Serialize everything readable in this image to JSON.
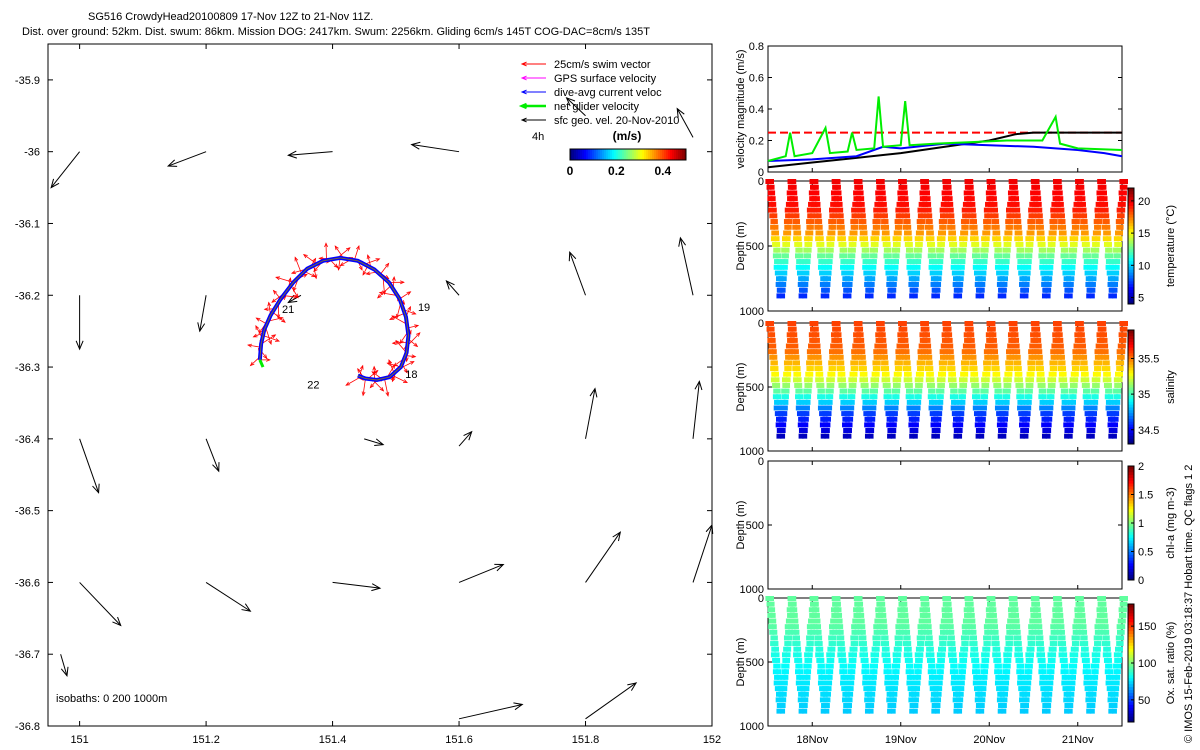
{
  "title": {
    "line1": "SG516 CrowdyHead20100809 17-Nov 12Z to 21-Nov 11Z.",
    "line2": "Dist. over ground: 52km. Dist. swum: 86km. Mission DOG: 2417km. Swum: 2256km. Gliding 6cm/s 145T COG-DAC=8cm/s 135T"
  },
  "credit": "© IMOS 15-Feb-2019 03:18:37 Hobart time. QC flags 1  2",
  "colors": {
    "swim": "#ff0000",
    "gps": "#ff00ff",
    "dac": "#0000ff",
    "net": "#00ee00",
    "geo": "#000000"
  },
  "chart_data": [
    {
      "id": "map",
      "type": "scatter",
      "xlim": [
        150.95,
        152.0
      ],
      "ylim": [
        -36.8,
        -35.85
      ],
      "xticks": [
        151,
        151.2,
        151.4,
        151.6,
        151.8,
        152
      ],
      "yticks": [
        -35.9,
        -36,
        -36.1,
        -36.2,
        -36.3,
        -36.4,
        -36.5,
        -36.6,
        -36.7,
        -36.8
      ],
      "legend": {
        "position": "top-right",
        "entries": [
          {
            "label": "25cm/s swim vector",
            "color": "#ff0000"
          },
          {
            "label": "GPS surface velocity",
            "color": "#ff00ff"
          },
          {
            "label": "dive-avg current veloc",
            "color": "#0000ff"
          },
          {
            "label": "net glider velocity",
            "color": "#00ee00"
          },
          {
            "label": "sfc geo. vel. 20-Nov-2010",
            "color": "#000000"
          }
        ]
      },
      "colorbar": {
        "label": "(m/s)",
        "ticks": [
          0,
          0.2,
          0.4
        ],
        "range": [
          0,
          0.5
        ]
      },
      "scale_label": "4h",
      "isobaths_label": "isobaths: 0   200   1000m",
      "track_labels": [
        {
          "text": "21",
          "x": 151.32,
          "y": -36.225
        },
        {
          "text": "19",
          "x": 151.535,
          "y": -36.222
        },
        {
          "text": "18",
          "x": 151.515,
          "y": -36.315
        },
        {
          "text": "22",
          "x": 151.36,
          "y": -36.33
        }
      ],
      "track": [
        [
          151.285,
          -36.29
        ],
        [
          151.287,
          -36.268
        ],
        [
          151.292,
          -36.248
        ],
        [
          151.302,
          -36.228
        ],
        [
          151.318,
          -36.205
        ],
        [
          151.338,
          -36.182
        ],
        [
          151.36,
          -36.163
        ],
        [
          151.385,
          -36.152
        ],
        [
          151.412,
          -36.148
        ],
        [
          151.44,
          -36.152
        ],
        [
          151.466,
          -36.164
        ],
        [
          151.489,
          -36.182
        ],
        [
          151.506,
          -36.205
        ],
        [
          151.516,
          -36.23
        ],
        [
          151.52,
          -36.256
        ],
        [
          151.517,
          -36.28
        ],
        [
          151.508,
          -36.3
        ],
        [
          151.49,
          -36.314
        ],
        [
          151.47,
          -36.318
        ],
        [
          151.452,
          -36.316
        ],
        [
          151.44,
          -36.312
        ]
      ],
      "geo_vectors": [
        [
          151.0,
          -36.0,
          -0.045,
          -0.05
        ],
        [
          151.2,
          -36.0,
          -0.06,
          -0.02
        ],
        [
          151.4,
          -36.0,
          -0.07,
          -0.005
        ],
        [
          151.6,
          -36.0,
          -0.075,
          0.01
        ],
        [
          151.8,
          -35.95,
          -0.03,
          0.025
        ],
        [
          151.97,
          -35.98,
          -0.025,
          0.04
        ],
        [
          151.0,
          -36.2,
          0.0,
          -0.075
        ],
        [
          151.2,
          -36.2,
          -0.01,
          -0.05
        ],
        [
          151.35,
          -36.2,
          -0.02,
          -0.01
        ],
        [
          151.6,
          -36.2,
          -0.02,
          0.02
        ],
        [
          151.8,
          -36.2,
          -0.025,
          0.06
        ],
        [
          151.97,
          -36.2,
          -0.02,
          0.08
        ],
        [
          151.0,
          -36.4,
          0.03,
          -0.075
        ],
        [
          151.2,
          -36.4,
          0.02,
          -0.045
        ],
        [
          151.45,
          -36.4,
          0.03,
          -0.008
        ],
        [
          151.6,
          -36.41,
          0.02,
          0.02
        ],
        [
          151.8,
          -36.4,
          0.015,
          0.07
        ],
        [
          151.97,
          -36.4,
          0.01,
          0.08
        ],
        [
          151.0,
          -36.6,
          0.065,
          -0.06
        ],
        [
          151.2,
          -36.6,
          0.07,
          -0.04
        ],
        [
          151.4,
          -36.6,
          0.075,
          -0.008
        ],
        [
          151.6,
          -36.6,
          0.07,
          0.025
        ],
        [
          151.8,
          -36.6,
          0.055,
          0.07
        ],
        [
          151.97,
          -36.6,
          0.03,
          0.08
        ],
        [
          150.97,
          -36.7,
          0.01,
          -0.03
        ],
        [
          151.6,
          -36.79,
          0.1,
          0.02
        ],
        [
          151.8,
          -36.79,
          0.08,
          0.05
        ]
      ]
    },
    {
      "id": "velocity",
      "type": "line",
      "ylabel": "velocity magnitude (m/s)",
      "ylim": [
        0,
        0.8
      ],
      "yticks": [
        0,
        0.2,
        0.4,
        0.6,
        0.8
      ],
      "series": [
        {
          "color": "#ff0000",
          "dashed": true,
          "values": [
            [
              17.5,
              0.25
            ],
            [
              21.5,
              0.25
            ]
          ]
        },
        {
          "color": "#000000",
          "values": [
            [
              17.5,
              0.03
            ],
            [
              18.0,
              0.06
            ],
            [
              18.5,
              0.09
            ],
            [
              19.0,
              0.12
            ],
            [
              19.5,
              0.16
            ],
            [
              20.0,
              0.2
            ],
            [
              20.3,
              0.24
            ],
            [
              20.5,
              0.25
            ],
            [
              21.5,
              0.25
            ]
          ]
        },
        {
          "color": "#0000ff",
          "values": [
            [
              17.5,
              0.07
            ],
            [
              18.0,
              0.08
            ],
            [
              18.5,
              0.1
            ],
            [
              18.8,
              0.16
            ],
            [
              19.0,
              0.15
            ],
            [
              19.5,
              0.18
            ],
            [
              20.0,
              0.17
            ],
            [
              20.5,
              0.16
            ],
            [
              21.0,
              0.14
            ],
            [
              21.3,
              0.12
            ],
            [
              21.5,
              0.1
            ]
          ]
        },
        {
          "color": "#00ee00",
          "values": [
            [
              17.5,
              0.07
            ],
            [
              17.7,
              0.1
            ],
            [
              17.75,
              0.25
            ],
            [
              17.8,
              0.1
            ],
            [
              18.0,
              0.12
            ],
            [
              18.15,
              0.28
            ],
            [
              18.2,
              0.12
            ],
            [
              18.4,
              0.13
            ],
            [
              18.45,
              0.25
            ],
            [
              18.5,
              0.14
            ],
            [
              18.7,
              0.15
            ],
            [
              18.75,
              0.48
            ],
            [
              18.8,
              0.16
            ],
            [
              19.0,
              0.17
            ],
            [
              19.05,
              0.45
            ],
            [
              19.1,
              0.17
            ],
            [
              19.4,
              0.18
            ],
            [
              19.8,
              0.19
            ],
            [
              20.2,
              0.2
            ],
            [
              20.6,
              0.2
            ],
            [
              20.75,
              0.35
            ],
            [
              20.8,
              0.18
            ],
            [
              21.0,
              0.15
            ],
            [
              21.5,
              0.14
            ]
          ]
        }
      ]
    },
    {
      "id": "temperature",
      "type": "heatmap",
      "ylabel": "Depth (m)",
      "ylim": [
        1000,
        0
      ],
      "yticks": [
        0,
        500,
        1000
      ],
      "colorbar_label": "temperature (°C)",
      "colorbar_ticks": [
        5,
        10,
        15,
        20
      ],
      "colorbar_range": [
        4,
        22
      ],
      "max_depth": 880,
      "dives": 16,
      "profile": [
        [
          0,
          20
        ],
        [
          200,
          19.5
        ],
        [
          400,
          17
        ],
        [
          550,
          13
        ],
        [
          700,
          10
        ],
        [
          880,
          7
        ]
      ]
    },
    {
      "id": "salinity",
      "type": "heatmap",
      "ylabel": "Depth (m)",
      "ylim": [
        1000,
        0
      ],
      "yticks": [
        0,
        500,
        1000
      ],
      "colorbar_label": "salinity",
      "colorbar_ticks": [
        34.5,
        35,
        35.5
      ],
      "colorbar_range": [
        34.3,
        35.9
      ],
      "max_depth": 880,
      "dives": 16,
      "profile": [
        [
          0,
          35.6
        ],
        [
          200,
          35.55
        ],
        [
          400,
          35.3
        ],
        [
          550,
          35.0
        ],
        [
          700,
          34.6
        ],
        [
          880,
          34.4
        ]
      ]
    },
    {
      "id": "chlorophyll",
      "type": "heatmap",
      "ylabel": "Depth (m)",
      "ylim": [
        1000,
        0
      ],
      "yticks": [
        0,
        500,
        1000
      ],
      "colorbar_label": "chl-a (mg m-3)",
      "colorbar_ticks": [
        0,
        0.5,
        1,
        1.5,
        2
      ],
      "colorbar_range": [
        0,
        2
      ],
      "dives": 0
    },
    {
      "id": "oxygen",
      "type": "heatmap",
      "ylabel": "Depth (m)",
      "ylim": [
        1000,
        0
      ],
      "yticks": [
        0,
        500,
        1000
      ],
      "xticks": [
        "18Nov",
        "19Nov",
        "20Nov",
        "21Nov"
      ],
      "xtick_values": [
        18,
        19,
        20,
        21
      ],
      "xlim": [
        17.5,
        21.5
      ],
      "colorbar_label": "Ox. sat. ratio (%)",
      "colorbar_ticks": [
        50,
        100,
        150
      ],
      "colorbar_range": [
        20,
        180
      ],
      "max_depth": 880,
      "dives": 16,
      "profile": [
        [
          0,
          95
        ],
        [
          200,
          95
        ],
        [
          400,
          85
        ],
        [
          600,
          78
        ],
        [
          880,
          72
        ]
      ]
    }
  ]
}
